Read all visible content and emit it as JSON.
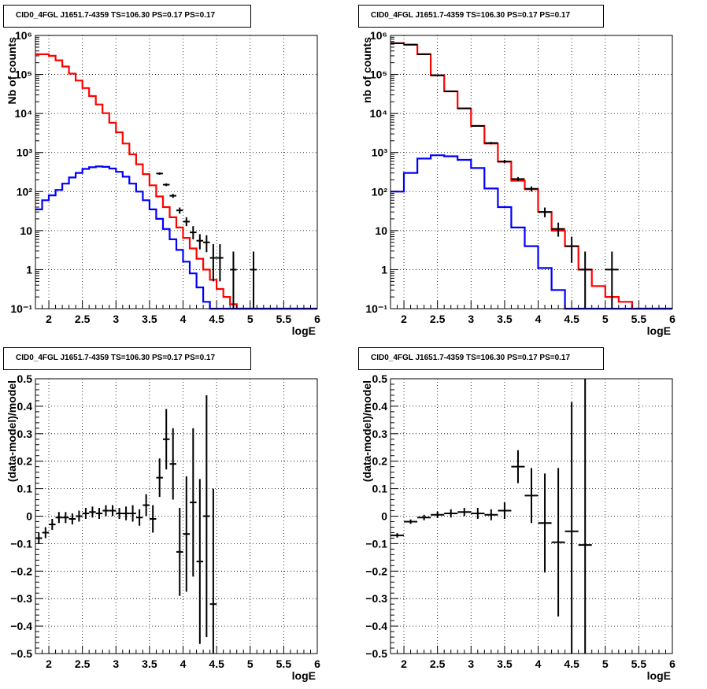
{
  "chart_data": [
    {
      "type": "line",
      "title": "CID0_4FGL J1651.7-4359 TS=106.30 PS=0.17 PS=0.17",
      "xlabel": "logE",
      "ylabel": "Nb of counts",
      "xlim": [
        1.8,
        6.0
      ],
      "ylim": [
        0.1,
        1000000
      ],
      "yscale": "log",
      "grid": true,
      "x_ticks": [
        "2",
        "2.5",
        "3",
        "3.5",
        "4",
        "4.5",
        "5",
        "5.5",
        "6"
      ],
      "y_ticks": [
        "10⁻¹",
        "1",
        "10",
        "10²",
        "10³",
        "10⁴",
        "10⁵",
        "10⁶"
      ],
      "bin_edges": [
        1.8,
        1.9,
        2.0,
        2.1,
        2.2,
        2.3,
        2.4,
        2.5,
        2.6,
        2.7,
        2.8,
        2.9,
        3.0,
        3.1,
        3.2,
        3.3,
        3.4,
        3.5,
        3.6,
        3.7,
        3.8,
        3.9,
        4.0,
        4.1,
        4.2,
        4.3,
        4.4,
        4.5,
        4.6,
        4.7,
        4.8,
        4.9,
        5.0,
        5.1,
        5.2,
        5.3,
        5.4,
        5.5,
        5.6,
        5.7,
        5.8,
        5.9,
        6.0
      ],
      "series": [
        {
          "name": "model",
          "color": "#ff0000",
          "values": [
            330000,
            330000,
            300000,
            230000,
            160000,
            105000,
            70000,
            45000,
            28000,
            17000,
            10200,
            5800,
            3300,
            1700,
            900,
            500,
            280,
            145,
            75,
            40,
            22,
            12,
            6.5,
            3.5,
            1.9,
            1.0,
            0.55,
            0.32,
            0.2,
            0.13,
            0.1,
            0.1,
            0.1,
            0.1,
            0.1,
            0.1,
            0.1,
            0.1,
            0.1,
            0.1,
            0.1,
            0.1
          ]
        },
        {
          "name": "source",
          "color": "#0000ff",
          "values": [
            35,
            60,
            80,
            110,
            160,
            230,
            300,
            380,
            420,
            440,
            430,
            390,
            320,
            240,
            160,
            100,
            60,
            35,
            20,
            11,
            6,
            3.2,
            1.6,
            0.8,
            0.35,
            0.15,
            0.1,
            0.1,
            0.1,
            0.1,
            0.1,
            0.1,
            0.1,
            0.1,
            0.1,
            0.1,
            0.1,
            0.1,
            0.1,
            0.1,
            0.1,
            0.1
          ]
        }
      ],
      "points": [
        {
          "x": 3.65,
          "y": 290,
          "yerr_lo": 20,
          "yerr_hi": 20,
          "xerr": 0.05
        },
        {
          "x": 3.75,
          "y": 150,
          "yerr_lo": 12,
          "yerr_hi": 12,
          "xerr": 0.05
        },
        {
          "x": 3.85,
          "y": 78,
          "yerr_lo": 9,
          "yerr_hi": 9,
          "xerr": 0.05
        },
        {
          "x": 3.95,
          "y": 33,
          "yerr_lo": 6,
          "yerr_hi": 6,
          "xerr": 0.05
        },
        {
          "x": 4.05,
          "y": 17,
          "yerr_lo": 4,
          "yerr_hi": 5,
          "xerr": 0.05
        },
        {
          "x": 4.15,
          "y": 9,
          "yerr_lo": 3,
          "yerr_hi": 4,
          "xerr": 0.05
        },
        {
          "x": 4.25,
          "y": 5.5,
          "yerr_lo": 2.2,
          "yerr_hi": 2.6,
          "xerr": 0.05
        },
        {
          "x": 4.35,
          "y": 5,
          "yerr_lo": 2.2,
          "yerr_hi": 2.6,
          "xerr": 0.05
        },
        {
          "x": 4.45,
          "y": 2,
          "yerr_lo": 1.5,
          "yerr_hi": 2.5,
          "xerr": 0.05
        },
        {
          "x": 4.55,
          "y": 2,
          "yerr_lo": 1.5,
          "yerr_hi": 2.5,
          "xerr": 0.05
        },
        {
          "x": 4.75,
          "y": 1,
          "yerr_lo": 0.99,
          "yerr_hi": 1.9,
          "xerr": 0.05
        },
        {
          "x": 5.05,
          "y": 1,
          "yerr_lo": 0.99,
          "yerr_hi": 1.9,
          "xerr": 0.05
        }
      ]
    },
    {
      "type": "line",
      "title": "CID0_4FGL J1651.7-4359 TS=106.30 PS=0.17 PS=0.17",
      "xlabel": "logE",
      "ylabel": "nb of counts",
      "xlim": [
        1.8,
        6.0
      ],
      "ylim": [
        0.1,
        1000000
      ],
      "yscale": "log",
      "grid": true,
      "x_ticks": [
        "2",
        "2.5",
        "3",
        "3.5",
        "4",
        "4.5",
        "5",
        "5.5",
        "6"
      ],
      "y_ticks": [
        "10⁻¹",
        "1",
        "10",
        "10²",
        "10³",
        "10⁴",
        "10⁵",
        "10⁶"
      ],
      "bin_edges": [
        1.8,
        2.0,
        2.2,
        2.4,
        2.6,
        2.8,
        3.0,
        3.2,
        3.4,
        3.6,
        3.8,
        4.0,
        4.2,
        4.4,
        4.6,
        4.8,
        5.0,
        5.2,
        5.4,
        5.6,
        5.8,
        6.0
      ],
      "series": [
        {
          "name": "model",
          "color": "#ff0000",
          "values": [
            630000,
            580000,
            330000,
            95000,
            37000,
            13500,
            4800,
            1700,
            580,
            190,
            115,
            30,
            10,
            4,
            1.0,
            0.38,
            0.2,
            0.15,
            0.1,
            0.1,
            0.1
          ]
        },
        {
          "name": "source",
          "color": "#0000ff",
          "values": [
            100,
            300,
            700,
            850,
            800,
            650,
            400,
            120,
            40,
            12,
            4,
            1.1,
            0.3,
            0.1,
            0.1,
            0.1,
            0.1,
            0.1,
            0.1,
            0.1,
            0.1
          ]
        }
      ],
      "points": [
        {
          "x": 1.9,
          "y": 630000,
          "yerr_lo": 3000,
          "yerr_hi": 3000,
          "xerr": 0.1
        },
        {
          "x": 2.1,
          "y": 580000,
          "yerr_lo": 3000,
          "yerr_hi": 3000,
          "xerr": 0.1
        },
        {
          "x": 2.3,
          "y": 330000,
          "yerr_lo": 2000,
          "yerr_hi": 2000,
          "xerr": 0.1
        },
        {
          "x": 2.5,
          "y": 95000,
          "yerr_lo": 1500,
          "yerr_hi": 1500,
          "xerr": 0.1
        },
        {
          "x": 2.7,
          "y": 37000,
          "yerr_lo": 800,
          "yerr_hi": 800,
          "xerr": 0.1
        },
        {
          "x": 2.9,
          "y": 13500,
          "yerr_lo": 400,
          "yerr_hi": 400,
          "xerr": 0.1
        },
        {
          "x": 3.1,
          "y": 4800,
          "yerr_lo": 200,
          "yerr_hi": 200,
          "xerr": 0.1
        },
        {
          "x": 3.3,
          "y": 1750,
          "yerr_lo": 120,
          "yerr_hi": 120,
          "xerr": 0.1
        },
        {
          "x": 3.5,
          "y": 590,
          "yerr_lo": 60,
          "yerr_hi": 60,
          "xerr": 0.1
        },
        {
          "x": 3.7,
          "y": 210,
          "yerr_lo": 25,
          "yerr_hi": 25,
          "xerr": 0.1
        },
        {
          "x": 3.9,
          "y": 118,
          "yerr_lo": 18,
          "yerr_hi": 18,
          "xerr": 0.1
        },
        {
          "x": 4.1,
          "y": 30,
          "yerr_lo": 8,
          "yerr_hi": 9,
          "xerr": 0.1
        },
        {
          "x": 4.3,
          "y": 11,
          "yerr_lo": 4,
          "yerr_hi": 5,
          "xerr": 0.1
        },
        {
          "x": 4.5,
          "y": 4,
          "yerr_lo": 2.5,
          "yerr_hi": 3,
          "xerr": 0.1
        },
        {
          "x": 4.7,
          "y": 1,
          "yerr_lo": 0.99,
          "yerr_hi": 1.9,
          "xerr": 0.1
        },
        {
          "x": 5.1,
          "y": 1,
          "yerr_lo": 0.99,
          "yerr_hi": 1.9,
          "xerr": 0.1
        }
      ]
    },
    {
      "type": "scatter",
      "title": "CID0_4FGL J1651.7-4359 TS=106.30 PS=0.17 PS=0.17",
      "xlabel": "logE",
      "ylabel": "(data-model)/model",
      "xlim": [
        1.8,
        6.0
      ],
      "ylim": [
        -0.5,
        0.5
      ],
      "grid": true,
      "x_ticks": [
        "2",
        "2.5",
        "3",
        "3.5",
        "4",
        "4.5",
        "5",
        "5.5",
        "6"
      ],
      "y_ticks": [
        "−0.5",
        "−0.4",
        "−0.3",
        "−0.2",
        "−0.1",
        "0",
        "0.1",
        "0.2",
        "0.3",
        "0.4",
        "0.5"
      ],
      "points": [
        {
          "x": 1.85,
          "y": -0.08,
          "yerr": 0.02,
          "xerr": 0.05
        },
        {
          "x": 1.95,
          "y": -0.06,
          "yerr": 0.02,
          "xerr": 0.05
        },
        {
          "x": 2.05,
          "y": -0.03,
          "yerr": 0.02,
          "xerr": 0.05
        },
        {
          "x": 2.15,
          "y": -0.005,
          "yerr": 0.02,
          "xerr": 0.05
        },
        {
          "x": 2.25,
          "y": -0.005,
          "yerr": 0.02,
          "xerr": 0.05
        },
        {
          "x": 2.35,
          "y": -0.01,
          "yerr": 0.02,
          "xerr": 0.05
        },
        {
          "x": 2.45,
          "y": 0.0,
          "yerr": 0.02,
          "xerr": 0.05
        },
        {
          "x": 2.55,
          "y": 0.01,
          "yerr": 0.02,
          "xerr": 0.05
        },
        {
          "x": 2.65,
          "y": 0.015,
          "yerr": 0.02,
          "xerr": 0.05
        },
        {
          "x": 2.75,
          "y": 0.01,
          "yerr": 0.02,
          "xerr": 0.05
        },
        {
          "x": 2.85,
          "y": 0.02,
          "yerr": 0.02,
          "xerr": 0.05
        },
        {
          "x": 2.95,
          "y": 0.02,
          "yerr": 0.02,
          "xerr": 0.05
        },
        {
          "x": 3.05,
          "y": 0.01,
          "yerr": 0.02,
          "xerr": 0.05
        },
        {
          "x": 3.15,
          "y": 0.01,
          "yerr": 0.025,
          "xerr": 0.05
        },
        {
          "x": 3.25,
          "y": 0.01,
          "yerr": 0.03,
          "xerr": 0.05
        },
        {
          "x": 3.35,
          "y": -0.005,
          "yerr": 0.03,
          "xerr": 0.05
        },
        {
          "x": 3.45,
          "y": 0.04,
          "yerr": 0.04,
          "xerr": 0.05
        },
        {
          "x": 3.55,
          "y": -0.01,
          "yerr": 0.05,
          "xerr": 0.05
        },
        {
          "x": 3.65,
          "y": 0.14,
          "yerr": 0.07,
          "xerr": 0.05
        },
        {
          "x": 3.75,
          "y": 0.28,
          "yerr": 0.11,
          "xerr": 0.05
        },
        {
          "x": 3.85,
          "y": 0.19,
          "yerr": 0.13,
          "xerr": 0.05
        },
        {
          "x": 3.95,
          "y": -0.13,
          "yerr": 0.16,
          "xerr": 0.05
        },
        {
          "x": 4.05,
          "y": -0.065,
          "yerr": 0.21,
          "xerr": 0.05
        },
        {
          "x": 4.15,
          "y": 0.05,
          "yerr": 0.27,
          "xerr": 0.05
        },
        {
          "x": 4.25,
          "y": -0.165,
          "yerr": 0.3,
          "xerr": 0.05
        },
        {
          "x": 4.35,
          "y": 0.0,
          "yerr": 0.44,
          "xerr": 0.05
        },
        {
          "x": 4.45,
          "y": -0.32,
          "yerr": 0.42,
          "xerr": 0.05
        }
      ]
    },
    {
      "type": "scatter",
      "title": "CID0_4FGL J1651.7-4359 TS=106.30 PS=0.17 PS=0.17",
      "xlabel": "logE",
      "ylabel": "(data-model)/model",
      "xlim": [
        1.8,
        6.0
      ],
      "ylim": [
        -0.5,
        0.5
      ],
      "grid": true,
      "x_ticks": [
        "2",
        "2.5",
        "3",
        "3.5",
        "4",
        "4.5",
        "5",
        "5.5",
        "6"
      ],
      "y_ticks": [
        "−0.5",
        "−0.4",
        "−0.3",
        "−0.2",
        "−0.1",
        "0",
        "0.1",
        "0.2",
        "0.3",
        "0.4",
        "0.5"
      ],
      "points": [
        {
          "x": 1.9,
          "y": -0.07,
          "yerr": 0.008,
          "xerr": 0.1
        },
        {
          "x": 2.1,
          "y": -0.02,
          "yerr": 0.008,
          "xerr": 0.1
        },
        {
          "x": 2.3,
          "y": -0.005,
          "yerr": 0.01,
          "xerr": 0.1
        },
        {
          "x": 2.5,
          "y": 0.005,
          "yerr": 0.012,
          "xerr": 0.1
        },
        {
          "x": 2.7,
          "y": 0.01,
          "yerr": 0.015,
          "xerr": 0.1
        },
        {
          "x": 2.9,
          "y": 0.015,
          "yerr": 0.015,
          "xerr": 0.1
        },
        {
          "x": 3.1,
          "y": 0.01,
          "yerr": 0.02,
          "xerr": 0.1
        },
        {
          "x": 3.3,
          "y": 0.005,
          "yerr": 0.02,
          "xerr": 0.1
        },
        {
          "x": 3.5,
          "y": 0.02,
          "yerr": 0.03,
          "xerr": 0.1
        },
        {
          "x": 3.7,
          "y": 0.18,
          "yerr": 0.06,
          "xerr": 0.1
        },
        {
          "x": 3.9,
          "y": 0.075,
          "yerr": 0.1,
          "xerr": 0.1
        },
        {
          "x": 4.1,
          "y": -0.025,
          "yerr": 0.18,
          "xerr": 0.1
        },
        {
          "x": 4.3,
          "y": -0.095,
          "yerr": 0.27,
          "xerr": 0.1
        },
        {
          "x": 4.5,
          "y": -0.055,
          "yerr": 0.47,
          "xerr": 0.1
        },
        {
          "x": 4.7,
          "y": -0.105,
          "yerr": 0.62,
          "xerr": 0.1
        }
      ]
    }
  ]
}
